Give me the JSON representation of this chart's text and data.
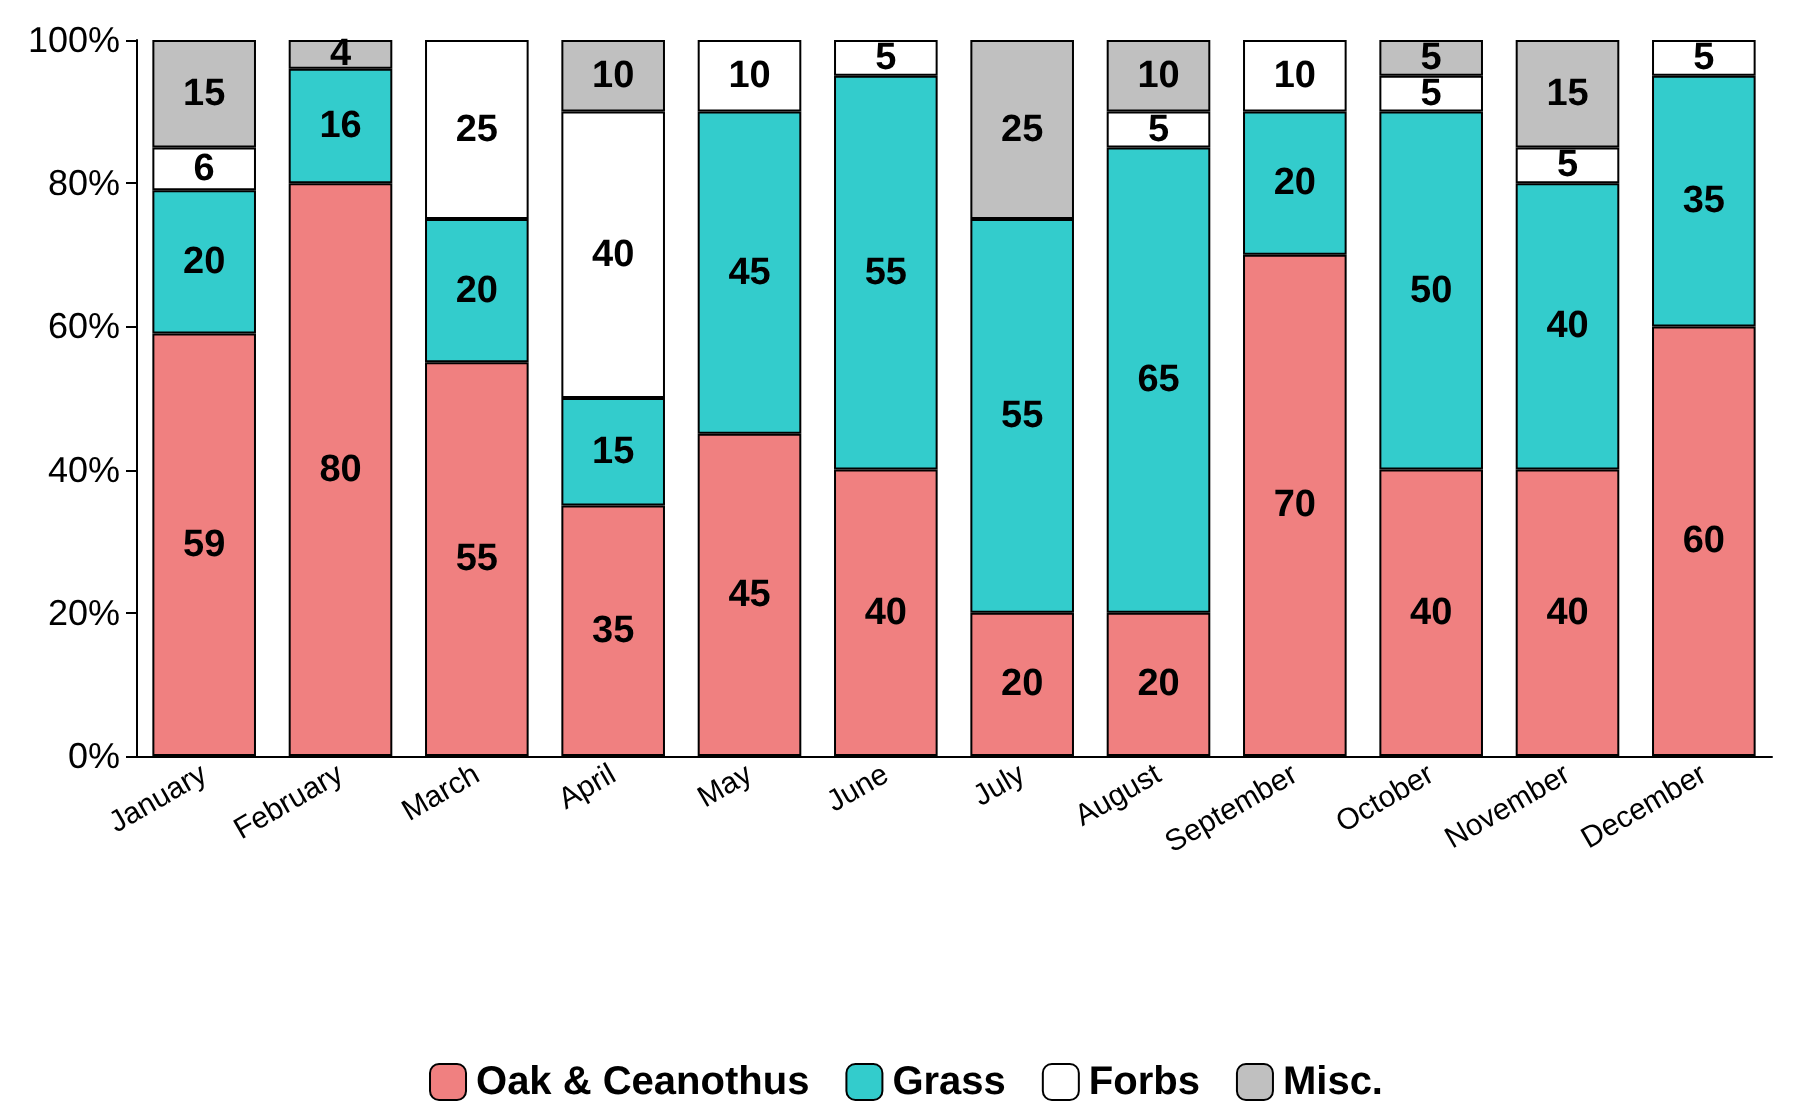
{
  "chart_data": {
    "type": "bar",
    "stacked": true,
    "categories": [
      "January",
      "February",
      "March",
      "April",
      "May",
      "June",
      "July",
      "August",
      "September",
      "October",
      "November",
      "December"
    ],
    "series": [
      {
        "name": "Oak & Ceanothus",
        "color": "#f08080",
        "values": [
          59,
          80,
          55,
          35,
          45,
          40,
          20,
          20,
          70,
          40,
          40,
          60
        ]
      },
      {
        "name": "Grass",
        "color": "#33cccc",
        "values": [
          20,
          16,
          20,
          15,
          45,
          55,
          55,
          65,
          20,
          50,
          40,
          35
        ]
      },
      {
        "name": "Forbs",
        "color": "#ffffff",
        "values": [
          6,
          null,
          25,
          40,
          10,
          5,
          null,
          5,
          10,
          5,
          5,
          5
        ]
      },
      {
        "name": "Misc.",
        "color": "#c0c0c0",
        "values": [
          15,
          4,
          null,
          10,
          null,
          null,
          25,
          10,
          null,
          5,
          15,
          null
        ]
      }
    ],
    "ylim": [
      0,
      100
    ],
    "yticks": [
      {
        "value": 0,
        "label": "0%"
      },
      {
        "value": 20,
        "label": "20%"
      },
      {
        "value": 40,
        "label": "40%"
      },
      {
        "value": 60,
        "label": "60%"
      },
      {
        "value": 80,
        "label": "80%"
      },
      {
        "value": 100,
        "label": "100%"
      }
    ],
    "data_labels": true,
    "legend": "bottom",
    "grid": false
  }
}
